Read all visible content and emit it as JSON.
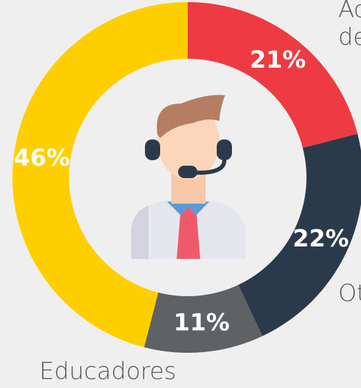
{
  "chart_data": {
    "type": "donut",
    "categories": [
      "Ac de",
      "Ot",
      "Educadores",
      null
    ],
    "values": [
      21,
      22,
      11,
      46
    ],
    "value_labels": [
      "21%",
      "22%",
      "11%",
      "46%"
    ],
    "colors": [
      "#ee3b43",
      "#2b3a4a",
      "#5f6264",
      "#fecf00"
    ]
  }
}
